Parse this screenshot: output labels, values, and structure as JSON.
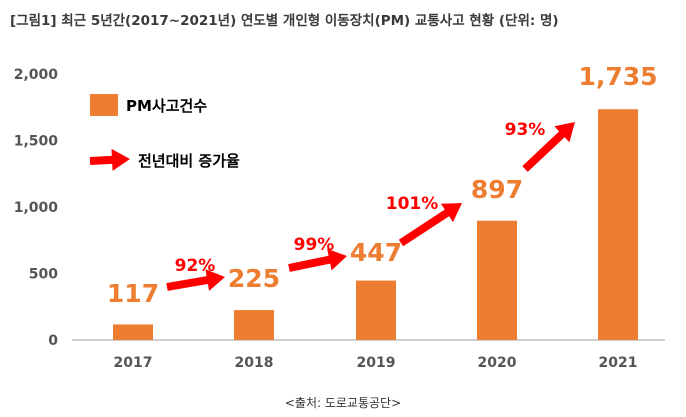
{
  "colors": {
    "bar": "#ed7d31",
    "growth": "#ff0000",
    "axis": "#bfbfbf",
    "tick_text": "#555555"
  },
  "chart_data": {
    "type": "bar",
    "title": "[그림1] 최근 5년간(2017~2021년) 연도별 개인형 이동장치(PM) 교통사고 현황 (단위: 명)",
    "source": "<출처: 도로교통공단>",
    "categories": [
      "2017",
      "2018",
      "2019",
      "2020",
      "2021"
    ],
    "series": [
      {
        "name": "PM사고건수",
        "values": [
          117,
          225,
          447,
          897,
          1735
        ],
        "labels": [
          "117",
          "225",
          "447",
          "897",
          "1,735"
        ]
      }
    ],
    "growth": {
      "name": "전년대비 증가율",
      "values": [
        92,
        99,
        101,
        93
      ],
      "labels": [
        "92%",
        "99%",
        "101%",
        "93%"
      ]
    },
    "ylim": [
      0,
      2000
    ],
    "yticks": [
      0,
      500,
      1000,
      1500,
      2000
    ],
    "ytick_labels": [
      "0",
      "500",
      "1,000",
      "1,500",
      "2,000"
    ],
    "xlabel": "",
    "ylabel": "",
    "grid": false,
    "legend": "top-left"
  }
}
